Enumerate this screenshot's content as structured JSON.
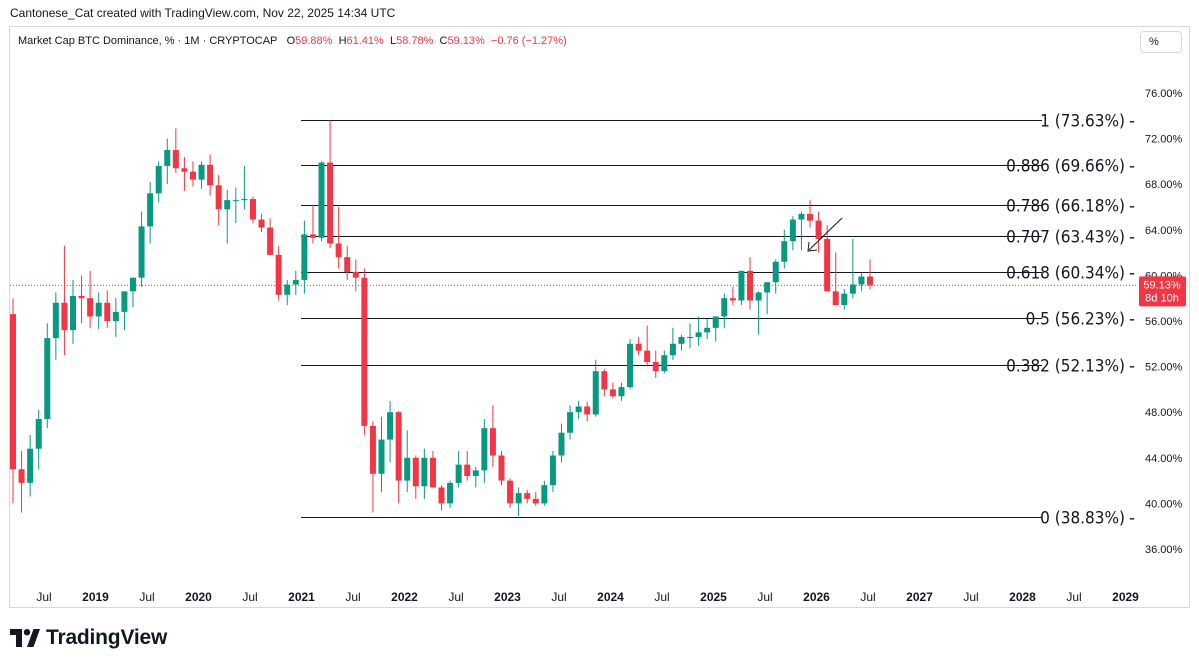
{
  "header": {
    "credit": "Cantonese_Cat created with TradingView.com, Nov 22, 2025 14:34 UTC"
  },
  "legend": {
    "symbol": "Market Cap BTC Dominance, % · 1M · CRYPTOCAP",
    "o_label": "O",
    "o_value": "59.88%",
    "h_label": "H",
    "h_value": "61.41%",
    "l_label": "L",
    "l_value": "58.78%",
    "c_label": "C",
    "c_value": "59.13%",
    "change": "−0.76 (−1.27%)"
  },
  "unit_button": "%",
  "price_tag": {
    "value": "59.13%",
    "countdown": "8d 10h",
    "color": "#f23645"
  },
  "footer": {
    "brand": "TradingView"
  },
  "colors": {
    "up": "#089981",
    "down": "#f23645",
    "grid_line": "#131722",
    "axis_text": "#131722"
  },
  "chart_data": {
    "type": "candlestick",
    "timeframe": "1M",
    "y_axis": {
      "ticks": [
        "76.00%",
        "72.00%",
        "68.00%",
        "64.00%",
        "60.00%",
        "56.00%",
        "52.00%",
        "48.00%",
        "44.00%",
        "40.00%",
        "36.00%"
      ],
      "ylim": [
        34.5,
        78.0
      ]
    },
    "x_axis": {
      "ticks": [
        "Jul",
        "2019",
        "Jul",
        "2020",
        "Jul",
        "2021",
        "Jul",
        "2022",
        "Jul",
        "2023",
        "Jul",
        "2024",
        "Jul",
        "2025",
        "Jul",
        "2026",
        "Jul",
        "2027",
        "Jul",
        "2028",
        "Jul",
        "2029"
      ]
    },
    "fib_levels": [
      {
        "ratio": 1,
        "value": 73.63,
        "label": "1 (73.63%)"
      },
      {
        "ratio": 0.886,
        "value": 69.66,
        "label": "0.886 (69.66%)"
      },
      {
        "ratio": 0.786,
        "value": 66.18,
        "label": "0.786 (66.18%)"
      },
      {
        "ratio": 0.707,
        "value": 63.43,
        "label": "0.707 (63.43%)"
      },
      {
        "ratio": 0.618,
        "value": 60.34,
        "label": "0.618 (60.34%)"
      },
      {
        "ratio": 0.5,
        "value": 56.23,
        "label": "0.5 (56.23%)"
      },
      {
        "ratio": 0.382,
        "value": 52.13,
        "label": "0.382 (52.13%)"
      },
      {
        "ratio": 0,
        "value": 38.83,
        "label": "0 (38.83%)"
      }
    ],
    "last_price": 59.13,
    "candles": [
      {
        "o": 56.6,
        "h": 58.0,
        "l": 40.0,
        "c": 43.0
      },
      {
        "o": 43.0,
        "h": 44.6,
        "l": 39.2,
        "c": 41.8
      },
      {
        "o": 41.8,
        "h": 46.0,
        "l": 40.6,
        "c": 44.8
      },
      {
        "o": 44.8,
        "h": 48.2,
        "l": 43.0,
        "c": 47.4
      },
      {
        "o": 47.4,
        "h": 55.8,
        "l": 46.6,
        "c": 54.5
      },
      {
        "o": 54.5,
        "h": 58.5,
        "l": 52.6,
        "c": 57.6
      },
      {
        "o": 57.6,
        "h": 62.6,
        "l": 53.0,
        "c": 55.2
      },
      {
        "o": 55.2,
        "h": 59.6,
        "l": 54.0,
        "c": 58.2
      },
      {
        "o": 58.2,
        "h": 60.0,
        "l": 55.8,
        "c": 58.0
      },
      {
        "o": 58.0,
        "h": 60.4,
        "l": 55.4,
        "c": 56.4
      },
      {
        "o": 56.4,
        "h": 58.5,
        "l": 55.3,
        "c": 57.6
      },
      {
        "o": 57.6,
        "h": 58.7,
        "l": 55.4,
        "c": 56.0
      },
      {
        "o": 56.0,
        "h": 58.0,
        "l": 54.6,
        "c": 56.8
      },
      {
        "o": 56.8,
        "h": 58.6,
        "l": 55.2,
        "c": 58.6
      },
      {
        "o": 58.6,
        "h": 59.6,
        "l": 57.2,
        "c": 59.8
      },
      {
        "o": 59.8,
        "h": 65.6,
        "l": 59.0,
        "c": 64.3
      },
      {
        "o": 64.3,
        "h": 68.2,
        "l": 62.8,
        "c": 67.2
      },
      {
        "o": 67.2,
        "h": 70.0,
        "l": 66.4,
        "c": 69.6
      },
      {
        "o": 69.6,
        "h": 72.0,
        "l": 68.0,
        "c": 71.0
      },
      {
        "o": 71.0,
        "h": 72.9,
        "l": 69.0,
        "c": 69.4
      },
      {
        "o": 69.4,
        "h": 70.4,
        "l": 67.4,
        "c": 69.1
      },
      {
        "o": 69.1,
        "h": 70.0,
        "l": 67.8,
        "c": 68.4
      },
      {
        "o": 68.4,
        "h": 70.0,
        "l": 67.6,
        "c": 69.7
      },
      {
        "o": 69.7,
        "h": 70.6,
        "l": 67.0,
        "c": 67.9
      },
      {
        "o": 67.9,
        "h": 68.8,
        "l": 64.4,
        "c": 65.8
      },
      {
        "o": 65.8,
        "h": 67.5,
        "l": 62.8,
        "c": 66.6
      },
      {
        "o": 66.6,
        "h": 67.7,
        "l": 64.6,
        "c": 66.6
      },
      {
        "o": 66.6,
        "h": 69.6,
        "l": 65.8,
        "c": 66.7
      },
      {
        "o": 66.7,
        "h": 66.9,
        "l": 64.6,
        "c": 64.9
      },
      {
        "o": 64.9,
        "h": 65.4,
        "l": 63.8,
        "c": 64.2
      },
      {
        "o": 64.2,
        "h": 65.0,
        "l": 61.8,
        "c": 61.8
      },
      {
        "o": 61.8,
        "h": 62.6,
        "l": 57.8,
        "c": 58.3
      },
      {
        "o": 58.3,
        "h": 59.6,
        "l": 57.4,
        "c": 59.2
      },
      {
        "o": 59.2,
        "h": 60.4,
        "l": 58.3,
        "c": 59.6
      },
      {
        "o": 59.6,
        "h": 64.8,
        "l": 58.4,
        "c": 63.6
      },
      {
        "o": 63.6,
        "h": 66.2,
        "l": 62.8,
        "c": 63.3
      },
      {
        "o": 63.3,
        "h": 70.0,
        "l": 63.0,
        "c": 69.9
      },
      {
        "o": 69.9,
        "h": 73.6,
        "l": 62.4,
        "c": 62.8
      },
      {
        "o": 62.8,
        "h": 66.0,
        "l": 60.6,
        "c": 61.6
      },
      {
        "o": 61.6,
        "h": 62.6,
        "l": 59.6,
        "c": 60.3
      },
      {
        "o": 60.3,
        "h": 61.4,
        "l": 58.6,
        "c": 59.8
      },
      {
        "o": 59.8,
        "h": 60.6,
        "l": 46.0,
        "c": 46.8
      },
      {
        "o": 46.8,
        "h": 47.2,
        "l": 39.2,
        "c": 42.6
      },
      {
        "o": 42.6,
        "h": 47.6,
        "l": 41.0,
        "c": 45.6
      },
      {
        "o": 45.6,
        "h": 49.0,
        "l": 43.6,
        "c": 48.0
      },
      {
        "o": 48.0,
        "h": 48.1,
        "l": 40.0,
        "c": 42.0
      },
      {
        "o": 42.0,
        "h": 46.4,
        "l": 41.0,
        "c": 44.0
      },
      {
        "o": 44.0,
        "h": 44.2,
        "l": 40.4,
        "c": 41.5
      },
      {
        "o": 41.5,
        "h": 44.8,
        "l": 40.4,
        "c": 44.0
      },
      {
        "o": 44.0,
        "h": 44.6,
        "l": 41.4,
        "c": 41.4
      },
      {
        "o": 41.4,
        "h": 41.6,
        "l": 39.4,
        "c": 40.0
      },
      {
        "o": 40.0,
        "h": 42.0,
        "l": 39.6,
        "c": 41.8
      },
      {
        "o": 41.8,
        "h": 44.6,
        "l": 41.4,
        "c": 43.4
      },
      {
        "o": 43.4,
        "h": 44.6,
        "l": 42.0,
        "c": 42.4
      },
      {
        "o": 42.4,
        "h": 43.2,
        "l": 41.4,
        "c": 42.9
      },
      {
        "o": 42.9,
        "h": 47.4,
        "l": 41.8,
        "c": 46.6
      },
      {
        "o": 46.6,
        "h": 48.6,
        "l": 43.2,
        "c": 44.2
      },
      {
        "o": 44.2,
        "h": 44.6,
        "l": 41.6,
        "c": 42.0
      },
      {
        "o": 42.0,
        "h": 42.2,
        "l": 39.6,
        "c": 40.0
      },
      {
        "o": 40.0,
        "h": 41.4,
        "l": 38.9,
        "c": 40.9
      },
      {
        "o": 40.9,
        "h": 41.2,
        "l": 40.0,
        "c": 40.4
      },
      {
        "o": 40.4,
        "h": 41.0,
        "l": 39.8,
        "c": 40.0
      },
      {
        "o": 40.0,
        "h": 42.0,
        "l": 39.8,
        "c": 41.6
      },
      {
        "o": 41.6,
        "h": 44.6,
        "l": 41.0,
        "c": 44.2
      },
      {
        "o": 44.2,
        "h": 47.0,
        "l": 43.6,
        "c": 46.2
      },
      {
        "o": 46.2,
        "h": 48.6,
        "l": 45.6,
        "c": 48.0
      },
      {
        "o": 48.0,
        "h": 49.0,
        "l": 47.4,
        "c": 48.5
      },
      {
        "o": 48.5,
        "h": 48.9,
        "l": 47.2,
        "c": 47.8
      },
      {
        "o": 47.8,
        "h": 52.6,
        "l": 47.6,
        "c": 51.6
      },
      {
        "o": 51.6,
        "h": 51.8,
        "l": 49.4,
        "c": 50.0
      },
      {
        "o": 50.0,
        "h": 50.6,
        "l": 49.2,
        "c": 49.4
      },
      {
        "o": 49.4,
        "h": 50.6,
        "l": 49.0,
        "c": 50.2
      },
      {
        "o": 50.2,
        "h": 54.4,
        "l": 50.0,
        "c": 54.0
      },
      {
        "o": 54.0,
        "h": 54.6,
        "l": 53.0,
        "c": 53.4
      },
      {
        "o": 53.4,
        "h": 55.6,
        "l": 52.0,
        "c": 52.4
      },
      {
        "o": 52.4,
        "h": 53.4,
        "l": 51.0,
        "c": 51.6
      },
      {
        "o": 51.6,
        "h": 53.4,
        "l": 51.4,
        "c": 53.0
      },
      {
        "o": 53.0,
        "h": 55.4,
        "l": 52.6,
        "c": 54.0
      },
      {
        "o": 54.0,
        "h": 54.8,
        "l": 53.4,
        "c": 54.6
      },
      {
        "o": 54.6,
        "h": 55.8,
        "l": 53.6,
        "c": 54.6
      },
      {
        "o": 54.6,
        "h": 56.4,
        "l": 53.8,
        "c": 55.0
      },
      {
        "o": 55.0,
        "h": 56.2,
        "l": 54.4,
        "c": 55.4
      },
      {
        "o": 55.4,
        "h": 56.4,
        "l": 54.2,
        "c": 56.4
      },
      {
        "o": 56.4,
        "h": 58.4,
        "l": 55.4,
        "c": 58.0
      },
      {
        "o": 58.0,
        "h": 59.0,
        "l": 57.4,
        "c": 57.8
      },
      {
        "o": 57.8,
        "h": 60.4,
        "l": 57.4,
        "c": 60.4
      },
      {
        "o": 60.4,
        "h": 61.6,
        "l": 57.0,
        "c": 57.8
      },
      {
        "o": 57.8,
        "h": 58.6,
        "l": 54.8,
        "c": 58.5
      },
      {
        "o": 58.5,
        "h": 59.4,
        "l": 56.6,
        "c": 59.4
      },
      {
        "o": 59.4,
        "h": 61.4,
        "l": 58.4,
        "c": 61.2
      },
      {
        "o": 61.2,
        "h": 64.0,
        "l": 60.6,
        "c": 63.0
      },
      {
        "o": 63.0,
        "h": 65.2,
        "l": 62.2,
        "c": 64.9
      },
      {
        "o": 64.9,
        "h": 65.6,
        "l": 62.2,
        "c": 65.4
      },
      {
        "o": 65.4,
        "h": 66.6,
        "l": 64.2,
        "c": 64.8
      },
      {
        "o": 64.8,
        "h": 65.6,
        "l": 62.0,
        "c": 63.2
      },
      {
        "o": 63.2,
        "h": 64.4,
        "l": 58.6,
        "c": 58.6
      },
      {
        "o": 58.6,
        "h": 62.0,
        "l": 57.4,
        "c": 57.4
      },
      {
        "o": 57.4,
        "h": 58.8,
        "l": 57.0,
        "c": 58.4
      },
      {
        "o": 58.4,
        "h": 63.2,
        "l": 58.0,
        "c": 59.2
      },
      {
        "o": 59.2,
        "h": 60.2,
        "l": 58.6,
        "c": 59.9
      },
      {
        "o": 59.9,
        "h": 61.41,
        "l": 58.78,
        "c": 59.13
      }
    ]
  }
}
